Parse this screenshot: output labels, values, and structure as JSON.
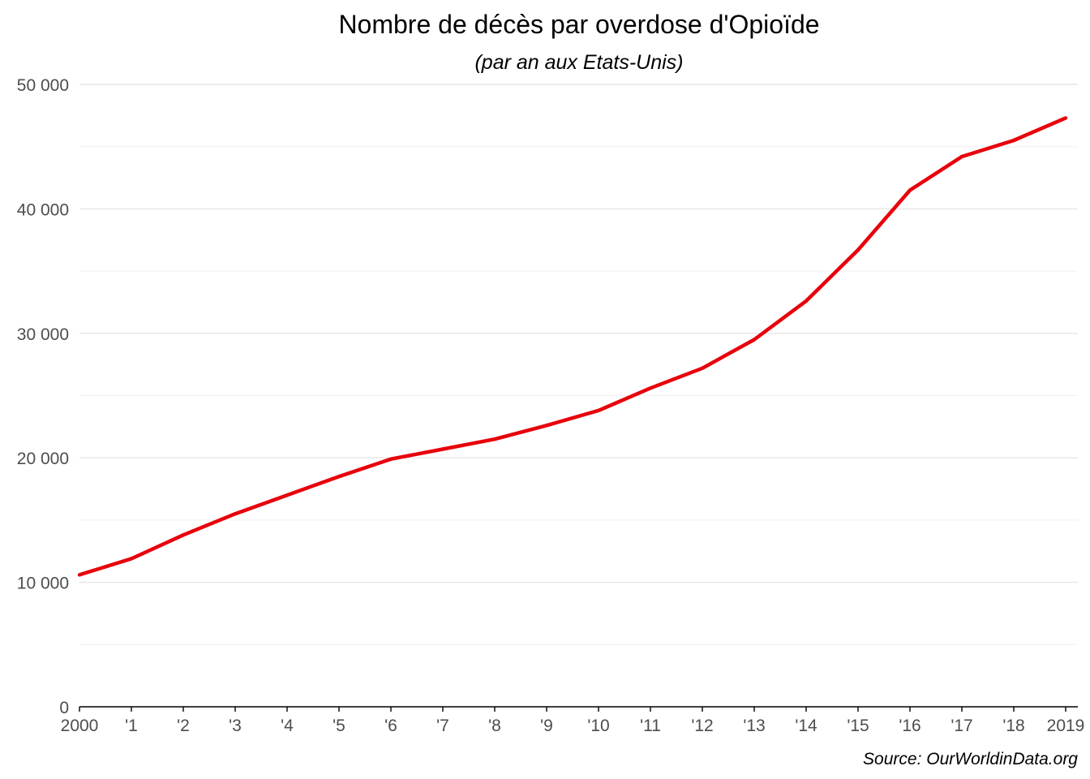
{
  "chart_data": {
    "type": "line",
    "title": "Nombre de décès par overdose d'Opioïde",
    "subtitle": "(par an aux Etats-Unis)",
    "caption": "Source: OurWorldinData.org",
    "xlabel": "",
    "ylabel": "",
    "x": [
      2000,
      2001,
      2002,
      2003,
      2004,
      2005,
      2006,
      2007,
      2008,
      2009,
      2010,
      2011,
      2012,
      2013,
      2014,
      2015,
      2016,
      2017,
      2018,
      2019
    ],
    "x_tick_labels": [
      "2000",
      "'1",
      "'2",
      "'3",
      "'4",
      "'5",
      "'6",
      "'7",
      "'8",
      "'9",
      "'10",
      "'11",
      "'12",
      "'13",
      "'14",
      "'15",
      "'16",
      "'17",
      "'18",
      "2019"
    ],
    "y_ticks": [
      0,
      10000,
      20000,
      30000,
      40000,
      50000
    ],
    "y_tick_labels": [
      "0",
      "10 000",
      "20 000",
      "30 000",
      "40 000",
      "50 000"
    ],
    "xlim": [
      2000,
      2019
    ],
    "ylim": [
      0,
      50000
    ],
    "grid": true,
    "series": [
      {
        "color": "#e8000b",
        "values": [
          10600,
          11900,
          13800,
          15500,
          17000,
          18500,
          19900,
          20700,
          21500,
          22600,
          23800,
          25600,
          27200,
          29500,
          32600,
          36700,
          41500,
          44200,
          45500,
          47300
        ]
      }
    ]
  }
}
